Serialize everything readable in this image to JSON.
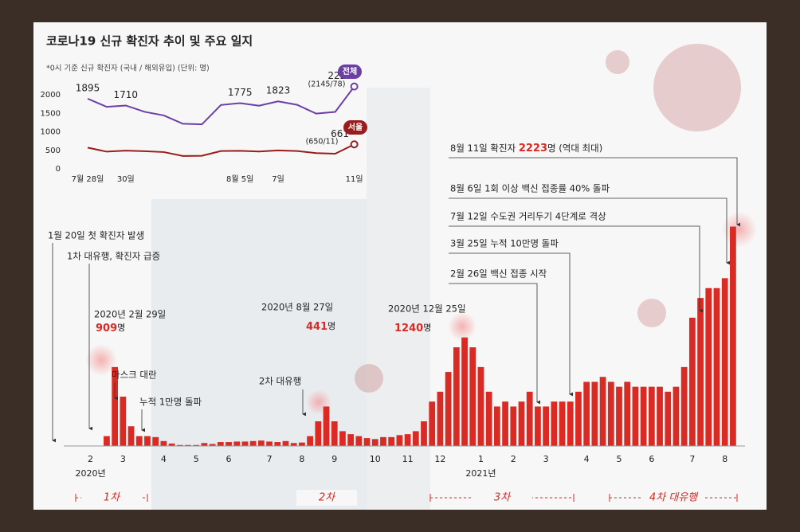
{
  "chart_data": [
    {
      "type": "line",
      "title": "코로나19 신규 확진자 추이 및 주요 일지",
      "subtitle": "*0시 기준 신규 확진자 (국내 / 해외유입) (단위: 명)",
      "categories": [
        "7월 28일",
        null,
        "30일",
        null,
        null,
        null,
        null,
        null,
        "8월 5일",
        null,
        "7일",
        null,
        null,
        null,
        "11일"
      ],
      "series": [
        {
          "name": "전체",
          "color": "#6b3fa6",
          "values": [
            1895,
            1674,
            1710,
            1539,
            1442,
            1218,
            1202,
            1725,
            1775,
            1704,
            1823,
            1729,
            1492,
            1537,
            2223
          ],
          "note": "(2145/78)"
        },
        {
          "name": "서울",
          "color": "#9b1c1c",
          "values": [
            573,
            464,
            491,
            477,
            453,
            347,
            353,
            480,
            487,
            469,
            498,
            480,
            426,
            408,
            661
          ],
          "note": "(650/11)"
        }
      ],
      "ylim": [
        0,
        2500
      ],
      "yticks": [
        0,
        500,
        1000,
        1500,
        2000
      ],
      "grid": false
    },
    {
      "type": "bar",
      "color": "#d92a24",
      "categories": [
        null,
        null,
        "2",
        null,
        null,
        null,
        "3",
        null,
        null,
        null,
        null,
        "4",
        null,
        null,
        null,
        "5",
        null,
        null,
        null,
        "6",
        null,
        null,
        null,
        null,
        "7",
        null,
        null,
        null,
        "8",
        null,
        null,
        null,
        "9",
        null,
        null,
        null,
        null,
        "10",
        null,
        null,
        null,
        "11",
        null,
        null,
        null,
        "12",
        null,
        null,
        null,
        null,
        "1",
        null,
        null,
        null,
        "2",
        null,
        null,
        null,
        "3",
        null,
        null,
        null,
        null,
        "4",
        null,
        null,
        null,
        "5",
        null,
        null,
        null,
        "6",
        null,
        null,
        null,
        null,
        "7",
        null,
        null,
        null,
        "8",
        null
      ],
      "values": [
        1,
        3,
        2,
        1,
        100,
        800,
        500,
        200,
        100,
        100,
        90,
        50,
        25,
        10,
        10,
        10,
        30,
        20,
        40,
        40,
        45,
        45,
        50,
        55,
        45,
        40,
        50,
        30,
        35,
        100,
        250,
        400,
        250,
        150,
        120,
        100,
        80,
        70,
        90,
        90,
        110,
        120,
        150,
        250,
        450,
        550,
        750,
        1000,
        1100,
        1000,
        800,
        550,
        400,
        450,
        400,
        450,
        550,
        400,
        400,
        450,
        450,
        450,
        550,
        650,
        650,
        700,
        650,
        600,
        650,
        600,
        600,
        600,
        600,
        550,
        600,
        800,
        1300,
        1500,
        1600,
        1600,
        1700,
        2223
      ],
      "ylim": [
        0,
        2300
      ],
      "years": [
        "2020년",
        "2021년"
      ],
      "peaks": [
        {
          "date": "2020년 2월 29일",
          "value": 909,
          "unit": "명"
        },
        {
          "date": "2020년 8월 27일",
          "value": 441,
          "unit": "명"
        },
        {
          "date": "2020년 12월 25일",
          "value": 1240,
          "unit": "명"
        }
      ],
      "events": [
        "1월 20일 첫 확진자 발생",
        "1차 대유행, 확진자 급증",
        "마스크 대란",
        "누적 1만명 돌파",
        "2차 대유행",
        "2월 26일 백신 접종 시작",
        "3월 25일 누적 10만명 돌파",
        "7월 12일 수도권 거리두기 4단계로 격상",
        "8월 6일 1회 이상 백신 접종률 40% 돌파"
      ],
      "top_event": {
        "before": "8월 11일 확진자 ",
        "value": 2223,
        "after": "명 (역대 최대)"
      },
      "waves": [
        "1차",
        "2차",
        "3차",
        "4차 대유행"
      ]
    }
  ]
}
